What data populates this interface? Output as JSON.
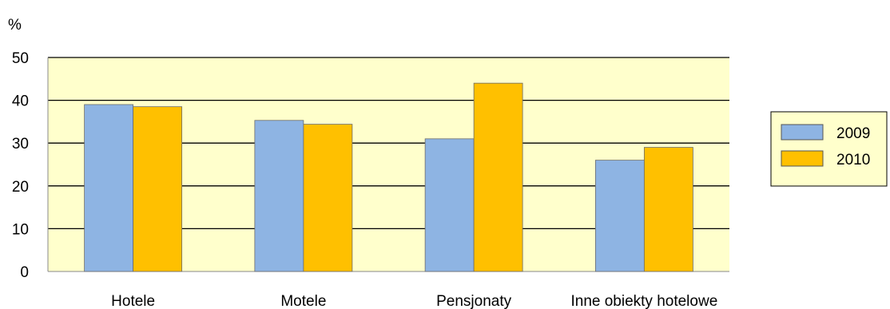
{
  "chart_data": {
    "type": "bar",
    "ylabel": "%",
    "ylim": [
      0,
      50
    ],
    "yticks": [
      "0",
      "10",
      "20",
      "30",
      "40",
      "50"
    ],
    "categories": [
      "Hotele",
      "Motele",
      "Pensjonaty",
      "Inne obiekty hotelowe"
    ],
    "series": [
      {
        "name": "2009",
        "values": [
          39.0,
          35.3,
          31.0,
          26.0
        ],
        "color": "#8EB4E3"
      },
      {
        "name": "2010",
        "values": [
          38.5,
          34.4,
          44.0,
          29.0
        ],
        "color": "#FFC000"
      }
    ],
    "plot_background": "#FFFFCC",
    "legend_background": "#FFFFCC",
    "grid": true,
    "legend_position": "right"
  }
}
